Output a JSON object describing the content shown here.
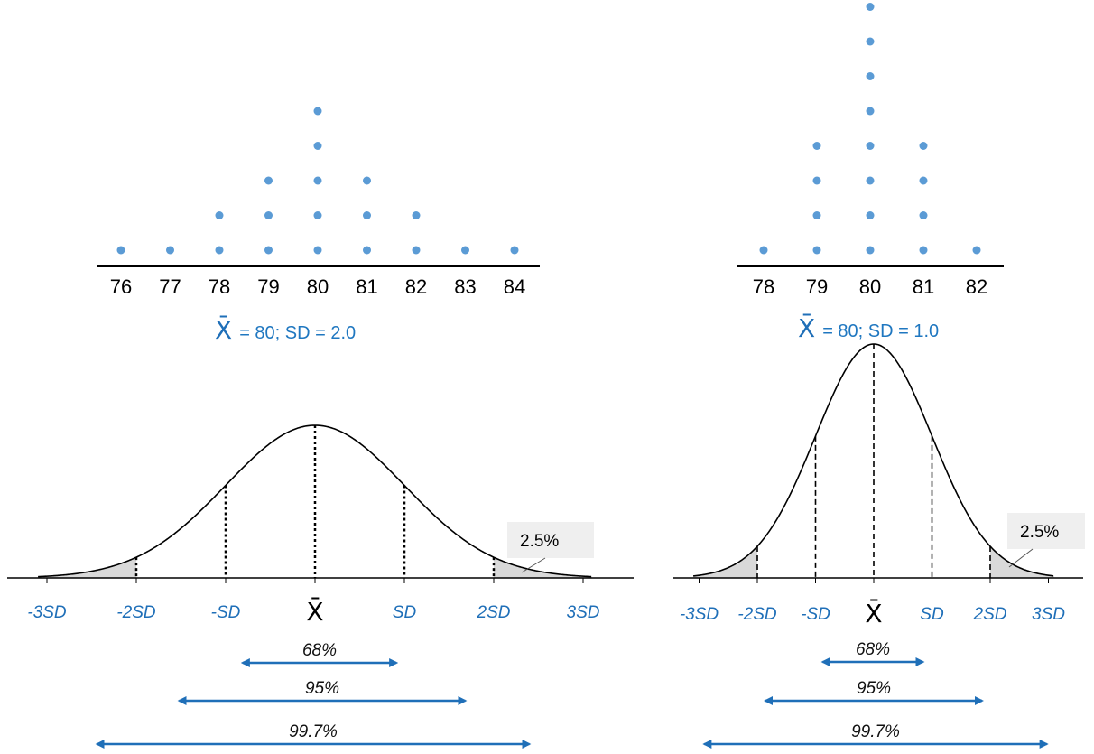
{
  "colors": {
    "dot": "#5b9bd5",
    "accent": "#1f6fb8",
    "shade": "#d9d9d9",
    "box": "#efefef"
  },
  "chart_data": [
    {
      "type": "scatter",
      "subtype": "dot-plot",
      "x": [
        76,
        77,
        78,
        79,
        80,
        81,
        82,
        83,
        84
      ],
      "counts": [
        1,
        1,
        2,
        3,
        5,
        3,
        2,
        1,
        1
      ],
      "tick_labels": [
        "76",
        "77",
        "78",
        "79",
        "80",
        "81",
        "82",
        "83",
        "84"
      ],
      "mean_symbol": "X̄",
      "caption": "= 80; SD = 2.0"
    },
    {
      "type": "scatter",
      "subtype": "dot-plot",
      "x": [
        78,
        79,
        80,
        81,
        82
      ],
      "counts": [
        1,
        4,
        8,
        4,
        1
      ],
      "tick_labels": [
        "78",
        "79",
        "80",
        "81",
        "82"
      ],
      "mean_symbol": "X̄",
      "caption": "= 80; SD = 1.0"
    },
    {
      "type": "line",
      "subtype": "normal-curve",
      "sd": 2.0,
      "sd_labels": [
        "-3SD",
        "-2SD",
        "-SD",
        "X̄",
        "SD",
        "2SD",
        "3SD"
      ],
      "tail_label": "2.5%",
      "ranges": [
        {
          "label": "68%",
          "k": 1
        },
        {
          "label": "95%",
          "k": 2
        },
        {
          "label": "99.7%",
          "k": 3
        }
      ]
    },
    {
      "type": "line",
      "subtype": "normal-curve",
      "sd": 1.0,
      "sd_labels": [
        "-3SD",
        "-2SD",
        "-SD",
        "X̄",
        "SD",
        "2SD",
        "3SD"
      ],
      "tail_label": "2.5%",
      "ranges": [
        {
          "label": "68%",
          "k": 1
        },
        {
          "label": "95%",
          "k": 2
        },
        {
          "label": "99.7%",
          "k": 3
        }
      ]
    }
  ]
}
